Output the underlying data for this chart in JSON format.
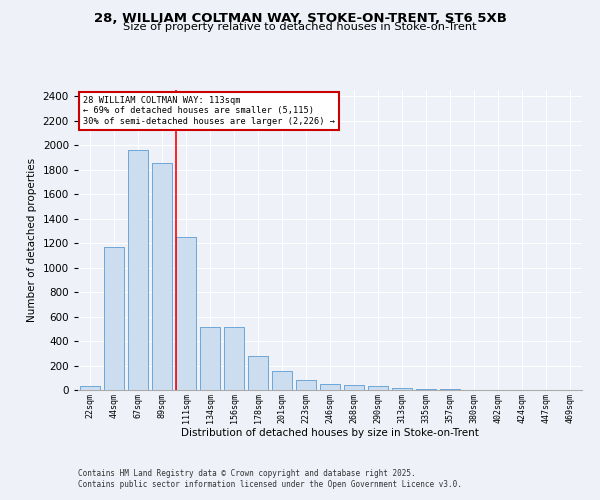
{
  "title1": "28, WILLIAM COLTMAN WAY, STOKE-ON-TRENT, ST6 5XB",
  "title2": "Size of property relative to detached houses in Stoke-on-Trent",
  "xlabel": "Distribution of detached houses by size in Stoke-on-Trent",
  "ylabel": "Number of detached properties",
  "categories": [
    "22sqm",
    "44sqm",
    "67sqm",
    "89sqm",
    "111sqm",
    "134sqm",
    "156sqm",
    "178sqm",
    "201sqm",
    "223sqm",
    "246sqm",
    "268sqm",
    "290sqm",
    "313sqm",
    "335sqm",
    "357sqm",
    "380sqm",
    "402sqm",
    "424sqm",
    "447sqm",
    "469sqm"
  ],
  "values": [
    30,
    1170,
    1960,
    1850,
    1250,
    515,
    515,
    275,
    155,
    85,
    45,
    40,
    35,
    15,
    8,
    5,
    3,
    2,
    1,
    1,
    1
  ],
  "bar_color": "#ccddf0",
  "bar_edge_color": "#5b9bd5",
  "red_line_bin": 4,
  "annotation_text": "28 WILLIAM COLTMAN WAY: 113sqm\n← 69% of detached houses are smaller (5,115)\n30% of semi-detached houses are larger (2,226) →",
  "annotation_box_color": "#ffffff",
  "annotation_box_edge": "#cc0000",
  "footer1": "Contains HM Land Registry data © Crown copyright and database right 2025.",
  "footer2": "Contains public sector information licensed under the Open Government Licence v3.0.",
  "background_color": "#eef2f8",
  "ylim": [
    0,
    2450
  ],
  "yticks": [
    0,
    200,
    400,
    600,
    800,
    1000,
    1200,
    1400,
    1600,
    1800,
    2000,
    2200,
    2400
  ]
}
